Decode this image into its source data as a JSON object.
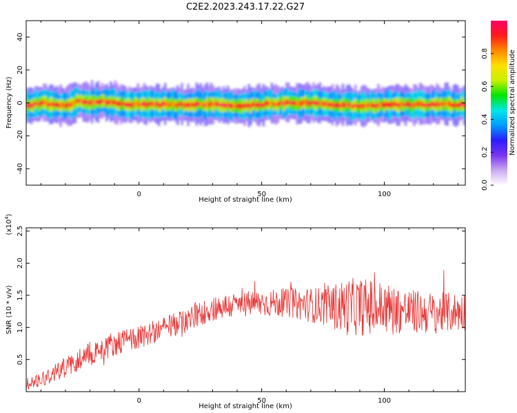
{
  "title": "C2E2.2023.243.17.22.G27",
  "colors": {
    "snr_line": "#e83a3a",
    "axis": "#000000",
    "colormap": [
      "#ffffff",
      "#c9a9f0",
      "#7a34f0",
      "#2a1cff",
      "#009bff",
      "#00e6e6",
      "#00e600",
      "#c8f000",
      "#ffe000",
      "#ff8800",
      "#ff1a1a",
      "#ff0066"
    ]
  },
  "chart_data": [
    {
      "type": "heatmap",
      "title": "C2E2.2023.243.17.22.G27",
      "xlabel": "Height of straight line (km)",
      "ylabel": "Frequency (Hz)",
      "xlim": [
        -46,
        133
      ],
      "ylim": [
        -50,
        50
      ],
      "xticks": [
        0,
        50,
        100
      ],
      "yticks": [
        -40,
        -20,
        0,
        20,
        40
      ],
      "colorbar": {
        "label": "Normalized spectral amplitude",
        "range": [
          0.0,
          1.0
        ],
        "ticks": [
          0.0,
          0.2,
          0.4,
          0.6,
          0.8
        ]
      },
      "band_center_hz": 0,
      "band_halfwidth_hz": 5,
      "band_center_track": {
        "x": [
          -46,
          -40,
          -35,
          -30,
          -25,
          -20,
          -15,
          -10,
          -5,
          0,
          10,
          20,
          30,
          40,
          50,
          60,
          70,
          80,
          90,
          100,
          110,
          120,
          133
        ],
        "y": [
          -2,
          0,
          -1,
          -2,
          1,
          0,
          1,
          0,
          -1,
          -1,
          -1,
          -1,
          -1,
          -2,
          -1,
          0,
          0,
          -1,
          -2,
          -1,
          -1,
          -1,
          -1
        ]
      },
      "grid": false
    },
    {
      "type": "line",
      "xlabel": "Height of straight line (km)",
      "ylabel": "SNR (10 * v/v)",
      "y_scale_label": "(x10",
      "y_scale_exp": "4",
      "y_scale_close": ")",
      "xlim": [
        -46,
        133
      ],
      "ylim": [
        0,
        2.55
      ],
      "xticks": [
        0,
        50,
        100
      ],
      "yticks": [
        0.5,
        1.0,
        1.5,
        2.0,
        2.5
      ],
      "ytick_labels": [
        "0.5",
        "1.0",
        "1.5",
        "2.0",
        "2.5"
      ],
      "series": [
        {
          "trend_x": [
            -46,
            -40,
            -30,
            -20,
            -10,
            0,
            10,
            20,
            30,
            40,
            50,
            60,
            70,
            80,
            90,
            100,
            110,
            120,
            133
          ],
          "trend_y": [
            0.12,
            0.2,
            0.38,
            0.6,
            0.75,
            0.85,
            0.98,
            1.12,
            1.3,
            1.35,
            1.38,
            1.38,
            1.35,
            1.32,
            1.32,
            1.3,
            1.25,
            1.22,
            1.25
          ],
          "spread_x": [
            -46,
            -20,
            0,
            30,
            60,
            75,
            85,
            95,
            110,
            133
          ],
          "spread_y": [
            0.1,
            0.2,
            0.18,
            0.2,
            0.22,
            0.3,
            0.45,
            0.45,
            0.35,
            0.3
          ]
        }
      ],
      "grid": false
    }
  ]
}
